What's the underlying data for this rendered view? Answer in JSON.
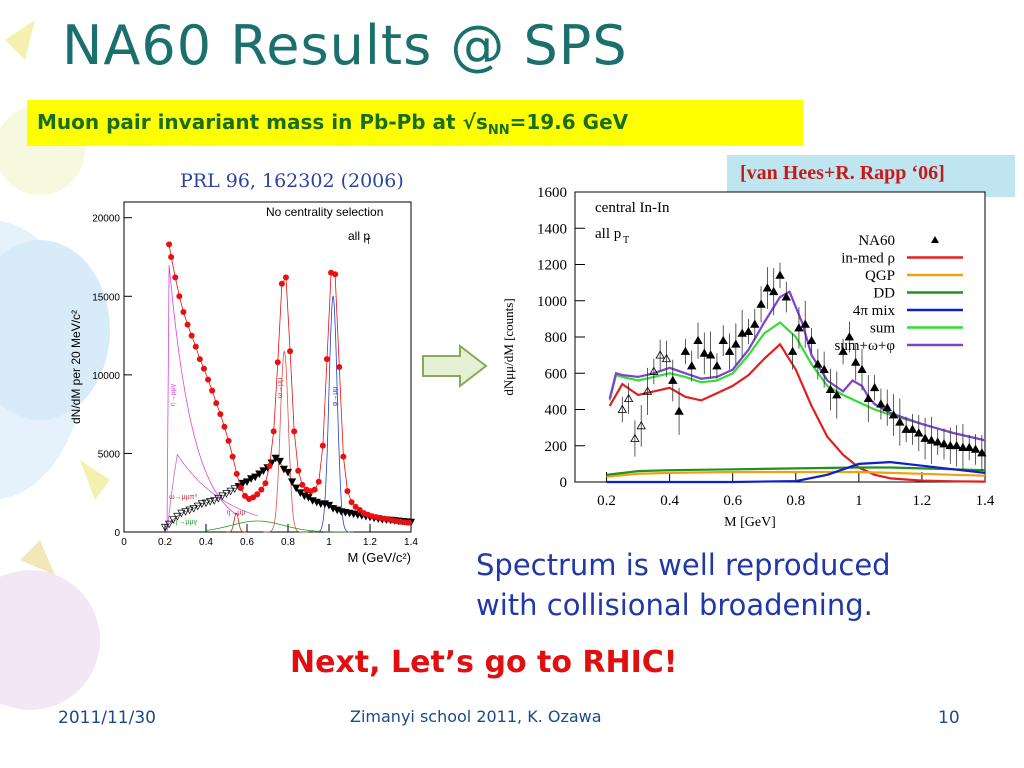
{
  "slide": {
    "title": "NA60 Results @ SPS",
    "subtitle": {
      "pre": "Muon pair invariant mass in Pb-Pb at √s",
      "sub": "NN",
      "post": "=19.6 GeV"
    },
    "ref_left": "PRL 96, 162302 (2006)",
    "ref_right": "[van Hees+R. Rapp ‘06]",
    "body_lines": [
      "Spectrum is well reproduced",
      "with collisional broadening."
    ],
    "next": "Next, Let’s go to RHIC!",
    "footer": {
      "date": "2011/11/30",
      "center": "Zimanyi school 2011, K. Ozawa",
      "page": "10"
    },
    "arrow_icon": "right-arrow-icon"
  },
  "chart_data": [
    {
      "type": "scatter",
      "ylabel": "dN/dM per 20 MeV/c²",
      "xlabel": "M (GeV/c²)",
      "annotations": [
        "No centrality selection",
        "all p",
        "T"
      ],
      "xlim": [
        0,
        1.4
      ],
      "ylim": [
        0,
        21000
      ],
      "xticks": [
        "0",
        "0.2",
        "0.4",
        "0.6",
        "0.8",
        "1",
        "1.2",
        "1.4"
      ],
      "yticks": [
        "0",
        "5000",
        "10000",
        "15000",
        "20000"
      ],
      "component_labels": [
        "η→μμγ",
        "ω→μμπ⁰",
        "η→μμ",
        "ω→μμ",
        "φ→μμ",
        "η'→μμγ"
      ],
      "series": [
        {
          "name": "data",
          "color": "#e81010",
          "x": [
            0.22,
            0.23,
            0.25,
            0.27,
            0.29,
            0.31,
            0.33,
            0.35,
            0.37,
            0.39,
            0.41,
            0.43,
            0.45,
            0.47,
            0.49,
            0.51,
            0.53,
            0.55,
            0.57,
            0.59,
            0.61,
            0.63,
            0.65,
            0.67,
            0.69,
            0.71,
            0.73,
            0.75,
            0.77,
            0.79,
            0.81,
            0.83,
            0.85,
            0.87,
            0.89,
            0.91,
            0.93,
            0.95,
            0.97,
            0.99,
            1.01,
            1.03,
            1.05,
            1.07,
            1.09,
            1.11,
            1.13,
            1.15,
            1.17,
            1.19,
            1.21,
            1.23,
            1.25,
            1.27,
            1.29,
            1.31,
            1.33,
            1.35,
            1.37,
            1.39
          ],
          "y": [
            18300,
            17500,
            16200,
            15000,
            14000,
            13200,
            12500,
            11800,
            11000,
            10400,
            9700,
            9000,
            8200,
            7500,
            6700,
            5800,
            4800,
            3700,
            2800,
            2300,
            2100,
            2200,
            2400,
            2700,
            3100,
            4200,
            6400,
            10800,
            15800,
            16200,
            11500,
            6400,
            3900,
            3000,
            2700,
            2600,
            2700,
            3200,
            5500,
            11000,
            16500,
            16400,
            10500,
            4800,
            2600,
            1900,
            1600,
            1400,
            1200,
            1100,
            1000,
            950,
            900,
            850,
            800,
            750,
            700,
            650,
            620,
            600
          ]
        },
        {
          "name": "background",
          "color": "#000000",
          "x": [
            0.2,
            0.22,
            0.24,
            0.26,
            0.28,
            0.3,
            0.32,
            0.34,
            0.36,
            0.38,
            0.4,
            0.42,
            0.44,
            0.46,
            0.48,
            0.5,
            0.52,
            0.54,
            0.56,
            0.58,
            0.6,
            0.62,
            0.64,
            0.66,
            0.68,
            0.7,
            0.72,
            0.74,
            0.76,
            0.78,
            0.8,
            0.82,
            0.84,
            0.86,
            0.88,
            0.9,
            0.92,
            0.94,
            0.96,
            0.98,
            1.0,
            1.02,
            1.04,
            1.06,
            1.08,
            1.1,
            1.12,
            1.14,
            1.16,
            1.18,
            1.2,
            1.22,
            1.24,
            1.26,
            1.28,
            1.3,
            1.32,
            1.34,
            1.36,
            1.38,
            1.4
          ],
          "y": [
            300,
            500,
            800,
            1000,
            1200,
            1300,
            1400,
            1500,
            1650,
            1800,
            1850,
            1950,
            2000,
            2150,
            2300,
            2450,
            2600,
            2750,
            2900,
            3100,
            3200,
            3400,
            3500,
            3700,
            3900,
            4100,
            4400,
            4700,
            4500,
            4000,
            3800,
            3200,
            2800,
            2500,
            2300,
            2200,
            2000,
            1900,
            1800,
            1800,
            1700,
            1500,
            1400,
            1300,
            1250,
            1200,
            1150,
            1100,
            1050,
            1000,
            950,
            900,
            850,
            800,
            780,
            760,
            730,
            700,
            680,
            650,
            630
          ]
        }
      ]
    },
    {
      "type": "line",
      "ylabel": "dNμμ/dM [counts]",
      "xlabel": "M [GeV]",
      "annotations": [
        "central In-In",
        "all p",
        "T"
      ],
      "xlim": [
        0.1,
        1.4
      ],
      "ylim": [
        0,
        1600
      ],
      "xticks": [
        "0.2",
        "0.4",
        "0.6",
        "0.8",
        "1",
        "1.2",
        "1.4"
      ],
      "yticks": [
        "0",
        "200",
        "400",
        "600",
        "800",
        "1000",
        "1200",
        "1400",
        "1600"
      ],
      "legend_position": "top-right",
      "series": [
        {
          "name": "NA60",
          "color": "#000000",
          "x": [
            0.25,
            0.27,
            0.29,
            0.31,
            0.33,
            0.35,
            0.37,
            0.39,
            0.41,
            0.43,
            0.45,
            0.47,
            0.49,
            0.51,
            0.53,
            0.55,
            0.57,
            0.59,
            0.61,
            0.63,
            0.65,
            0.67,
            0.69,
            0.71,
            0.73,
            0.75,
            0.77,
            0.79,
            0.81,
            0.83,
            0.85,
            0.87,
            0.89,
            0.91,
            0.93,
            0.95,
            0.97,
            0.99,
            1.01,
            1.03,
            1.05,
            1.07,
            1.09,
            1.11,
            1.13,
            1.15,
            1.17,
            1.19,
            1.21,
            1.23,
            1.25,
            1.27,
            1.29,
            1.31,
            1.33,
            1.35,
            1.37,
            1.39
          ],
          "y": [
            400,
            460,
            240,
            310,
            500,
            610,
            700,
            680,
            560,
            390,
            720,
            640,
            780,
            710,
            700,
            640,
            780,
            720,
            760,
            820,
            830,
            870,
            980,
            1070,
            1050,
            1140,
            1020,
            720,
            850,
            870,
            780,
            650,
            620,
            510,
            480,
            720,
            800,
            660,
            620,
            460,
            520,
            430,
            410,
            370,
            330,
            290,
            290,
            270,
            240,
            230,
            220,
            210,
            200,
            200,
            190,
            190,
            180,
            160
          ]
        },
        {
          "name": "in-med ρ",
          "color": "#e02020",
          "x": [
            0.21,
            0.25,
            0.3,
            0.35,
            0.4,
            0.45,
            0.5,
            0.55,
            0.6,
            0.65,
            0.7,
            0.75,
            0.8,
            0.85,
            0.9,
            0.95,
            1.0,
            1.05,
            1.1,
            1.2,
            1.3,
            1.4
          ],
          "y": [
            420,
            540,
            480,
            500,
            520,
            470,
            450,
            490,
            530,
            590,
            680,
            760,
            620,
            420,
            250,
            150,
            80,
            40,
            20,
            8,
            4,
            2
          ]
        },
        {
          "name": "QGP",
          "color": "#f0a010",
          "x": [
            0.2,
            0.3,
            0.4,
            0.6,
            0.8,
            1.0,
            1.1,
            1.2,
            1.3,
            1.4
          ],
          "y": [
            30,
            45,
            50,
            55,
            55,
            55,
            50,
            45,
            40,
            35
          ]
        },
        {
          "name": "DD",
          "color": "#209020",
          "x": [
            0.2,
            0.3,
            0.4,
            0.6,
            0.8,
            1.0,
            1.1,
            1.2,
            1.3,
            1.4
          ],
          "y": [
            40,
            60,
            65,
            70,
            75,
            80,
            80,
            75,
            70,
            65
          ]
        },
        {
          "name": "4π mix",
          "color": "#1020c8",
          "x": [
            0.2,
            0.6,
            0.8,
            0.9,
            1.0,
            1.1,
            1.2,
            1.3,
            1.4
          ],
          "y": [
            0,
            0,
            5,
            40,
            100,
            110,
            90,
            70,
            50
          ]
        },
        {
          "name": "sum",
          "color": "#30e030",
          "x": [
            0.21,
            0.23,
            0.25,
            0.3,
            0.35,
            0.4,
            0.45,
            0.5,
            0.55,
            0.6,
            0.65,
            0.7,
            0.75,
            0.8,
            0.85,
            0.9,
            0.95,
            1.0,
            1.05,
            1.1,
            1.2,
            1.3,
            1.4
          ],
          "y": [
            450,
            590,
            580,
            560,
            580,
            600,
            580,
            550,
            560,
            600,
            700,
            820,
            880,
            800,
            650,
            530,
            480,
            440,
            400,
            370,
            320,
            270,
            230
          ]
        },
        {
          "name": "sum+ω+φ",
          "color": "#8040d0",
          "x": [
            0.21,
            0.23,
            0.25,
            0.3,
            0.35,
            0.4,
            0.45,
            0.5,
            0.55,
            0.6,
            0.65,
            0.7,
            0.75,
            0.78,
            0.82,
            0.85,
            0.9,
            0.95,
            0.98,
            1.01,
            1.03,
            1.05,
            1.1,
            1.2,
            1.3,
            1.4
          ],
          "y": [
            460,
            600,
            590,
            580,
            600,
            630,
            600,
            570,
            580,
            620,
            730,
            880,
            1020,
            1050,
            880,
            700,
            560,
            500,
            560,
            530,
            470,
            430,
            380,
            320,
            270,
            230
          ]
        }
      ]
    }
  ]
}
